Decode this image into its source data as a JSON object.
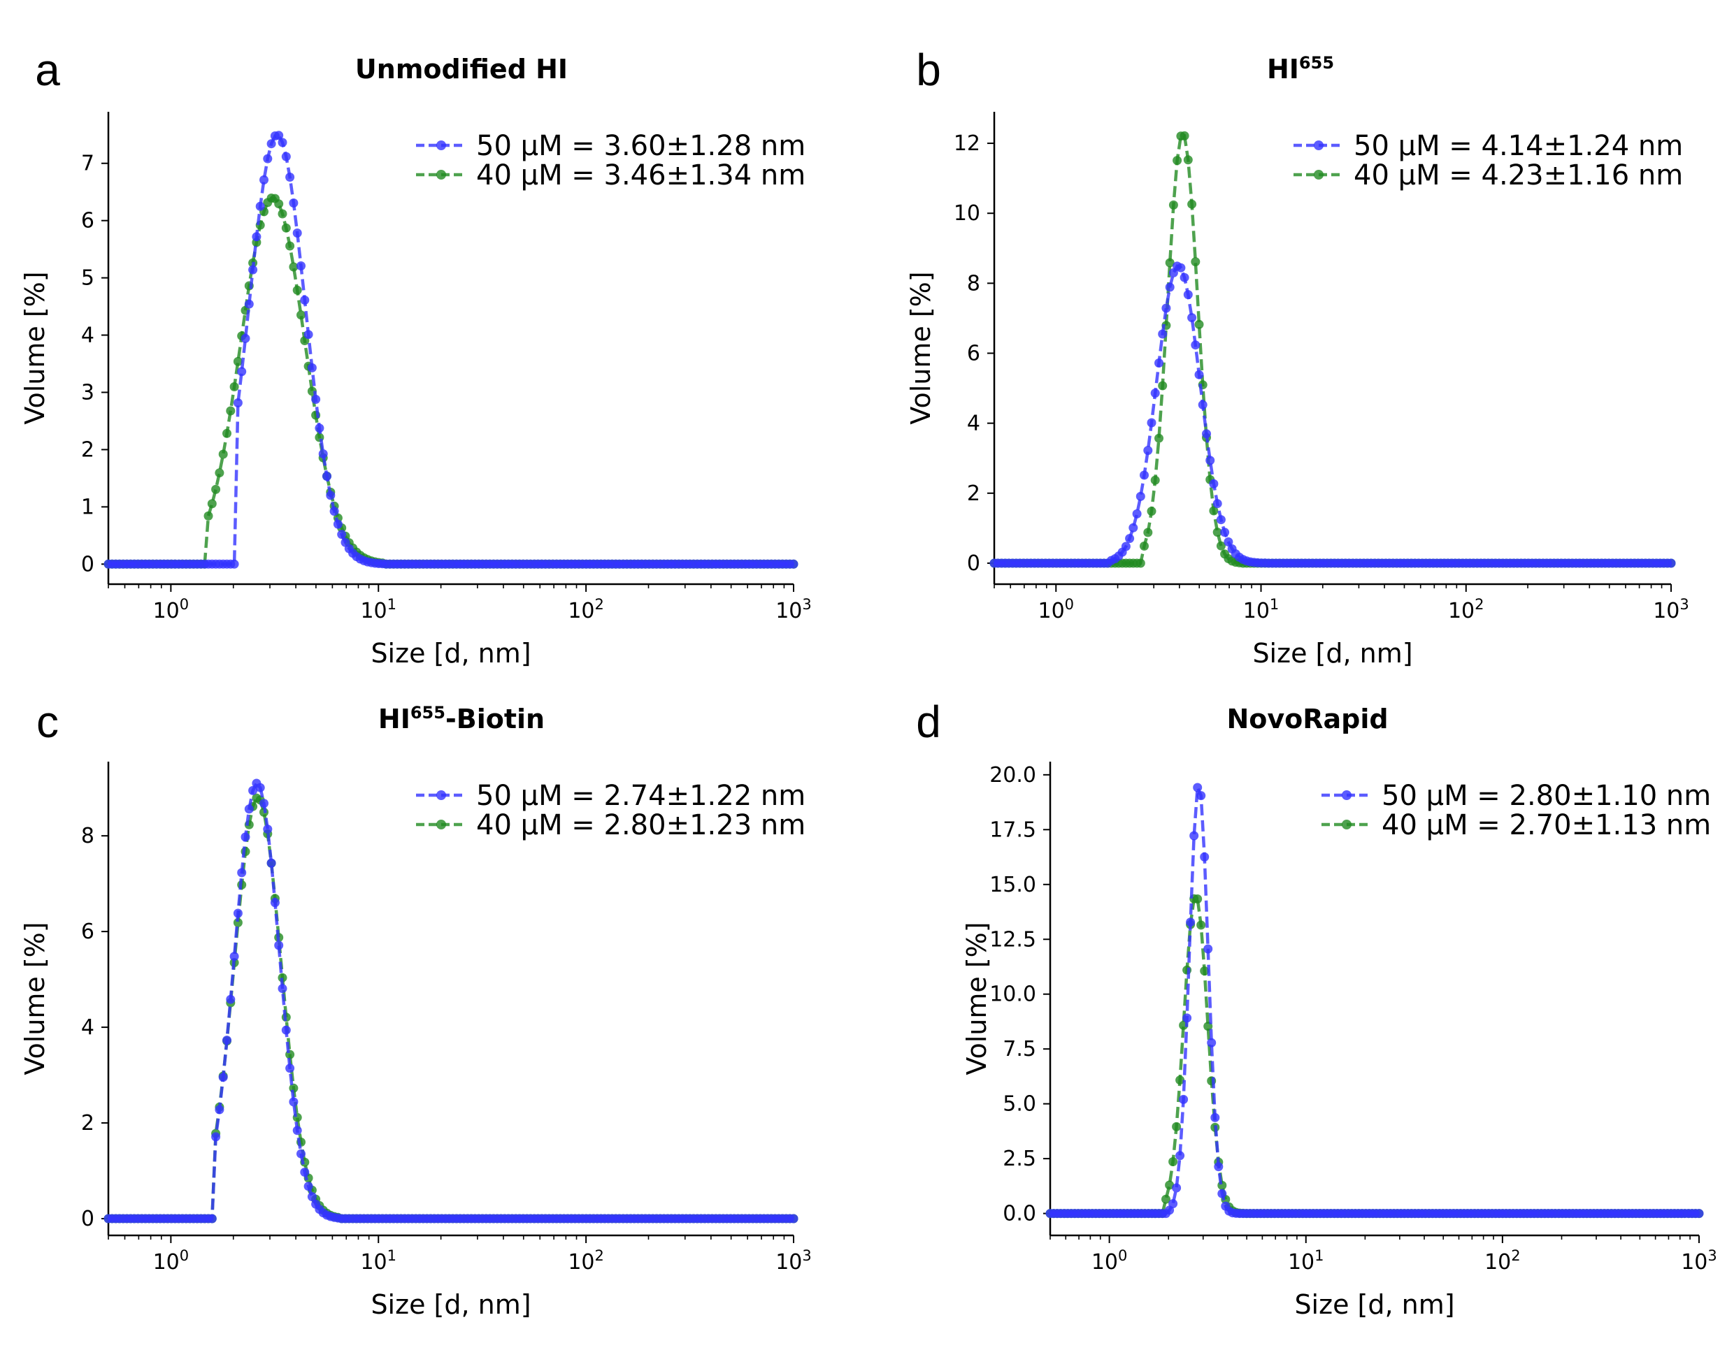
{
  "colors": {
    "s50": "#3333ff",
    "s40": "#228b22"
  },
  "chart_data": [
    {
      "panel": "a",
      "type": "line",
      "title": "Unmodified HI",
      "title_sup": "",
      "xlabel": "Size [d, nm]",
      "ylabel": "Volume [%]",
      "xscale": "log",
      "xlim": [
        0.5,
        1000
      ],
      "ylim": [
        -0.35,
        7.9
      ],
      "yticks": [
        "0",
        "1",
        "2",
        "3",
        "4",
        "5",
        "6",
        "7"
      ],
      "xticks": [
        {
          "base": "10",
          "exp": "0"
        },
        {
          "base": "10",
          "exp": "1"
        },
        {
          "base": "10",
          "exp": "2"
        },
        {
          "base": "10",
          "exp": "3"
        }
      ],
      "legend_position": "top-right",
      "grid": false,
      "series": [
        {
          "name": "50 μM = 3.60±1.28 nm",
          "color": "#3333ff",
          "peak": 7.5,
          "mu": 3.25,
          "sigma": 0.31,
          "lo": 2.05,
          "hi": 10.5
        },
        {
          "name": "40 μM = 3.46±1.34 nm",
          "color": "#228b22",
          "peak": 6.4,
          "mu": 3.1,
          "sigma": 0.355,
          "lo": 1.48,
          "hi": 10.5
        }
      ]
    },
    {
      "panel": "b",
      "type": "line",
      "title": "HI",
      "title_sup": "655",
      "xlabel": "Size [d, nm]",
      "ylabel": "Volume [%]",
      "xscale": "log",
      "xlim": [
        0.5,
        1000
      ],
      "ylim": [
        -0.6,
        12.9
      ],
      "yticks": [
        "0",
        "2",
        "4",
        "6",
        "8",
        "10",
        "12"
      ],
      "xticks": [
        {
          "base": "10",
          "exp": "0"
        },
        {
          "base": "10",
          "exp": "1"
        },
        {
          "base": "10",
          "exp": "2"
        },
        {
          "base": "10",
          "exp": "3"
        }
      ],
      "legend_position": "top-right",
      "grid": false,
      "series": [
        {
          "name": "50 μM = 4.14±1.24 nm",
          "color": "#3333ff",
          "peak": 8.5,
          "mu": 3.95,
          "sigma": 0.245,
          "lo": 1.85,
          "hi": 10.5
        },
        {
          "name": "40 μM = 4.23±1.16 nm",
          "color": "#228b22",
          "peak": 12.3,
          "mu": 4.15,
          "sigma": 0.17,
          "lo": 2.6,
          "hi": 8.0
        }
      ]
    },
    {
      "panel": "c",
      "type": "line",
      "title": "HI",
      "title_sup": "655",
      "title_suffix": "-Biotin",
      "xlabel": "Size [d, nm]",
      "ylabel": "Volume [%]",
      "xscale": "log",
      "xlim": [
        0.5,
        1000
      ],
      "ylim": [
        -0.35,
        9.55
      ],
      "yticks": [
        "0",
        "2",
        "4",
        "6",
        "8"
      ],
      "xticks": [
        {
          "base": "10",
          "exp": "0"
        },
        {
          "base": "10",
          "exp": "1"
        },
        {
          "base": "10",
          "exp": "2"
        },
        {
          "base": "10",
          "exp": "3"
        }
      ],
      "legend_position": "top-right",
      "grid": false,
      "series": [
        {
          "name": "50 μM = 2.74±1.22 nm",
          "color": "#3333ff",
          "peak": 9.1,
          "mu": 2.6,
          "sigma": 0.25,
          "lo": 1.6,
          "hi": 6.5
        },
        {
          "name": "40 μM = 2.80±1.23 nm",
          "color": "#228b22",
          "peak": 8.8,
          "mu": 2.62,
          "sigma": 0.26,
          "lo": 1.6,
          "hi": 6.5
        }
      ]
    },
    {
      "panel": "d",
      "type": "line",
      "title": "NovoRapid",
      "title_sup": "",
      "xlabel": "Size [d, nm]",
      "ylabel": "Volume [%]",
      "xscale": "log",
      "xlim": [
        0.5,
        1000
      ],
      "ylim": [
        -1.0,
        20.6
      ],
      "yticks": [
        "0.0",
        "2.5",
        "5.0",
        "7.5",
        "10.0",
        "12.5",
        "15.0",
        "17.5",
        "20.0"
      ],
      "xticks": [
        {
          "base": "10",
          "exp": "0"
        },
        {
          "base": "10",
          "exp": "1"
        },
        {
          "base": "10",
          "exp": "2"
        },
        {
          "base": "10",
          "exp": "3"
        }
      ],
      "legend_position": "top-right",
      "grid": false,
      "series": [
        {
          "name": "50 μM = 2.80±1.10 nm",
          "color": "#3333ff",
          "peak": 19.6,
          "mu": 2.85,
          "sigma": 0.11,
          "lo": 2.0,
          "hi": 4.8
        },
        {
          "name": "40 μM = 2.70±1.13 nm",
          "color": "#228b22",
          "peak": 14.5,
          "mu": 2.75,
          "sigma": 0.14,
          "lo": 1.9,
          "hi": 4.8
        }
      ]
    }
  ]
}
